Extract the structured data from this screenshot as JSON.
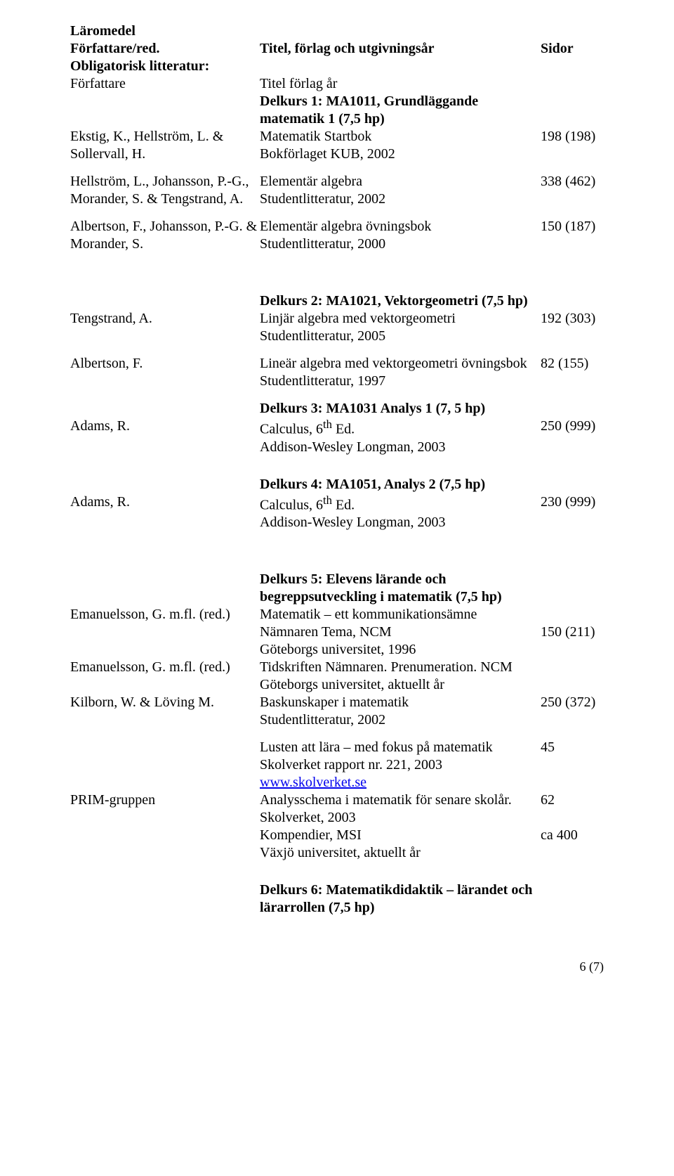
{
  "header": {
    "h1": "Läromedel",
    "h2_left": "Författare/red.",
    "h2_mid": "Titel, förlag och utgivningsår",
    "h2_right": "Sidor",
    "obligatory": "Obligatorisk litteratur:",
    "sub_left": "Författare",
    "sub_mid": "Titel förlag år"
  },
  "d1": {
    "title": "Delkurs 1: MA1011, Grundläggande matematik 1 (7,5 hp)",
    "a1_author": "Ekstig, K., Hellström, L. & Sollervall, H.",
    "a1_title": "Matematik Startbok",
    "a1_pub": "Bokförlaget KUB, 2002",
    "a1_pages": "198 (198)",
    "a2_author": "Hellström, L., Johansson, P.-G., Morander, S. & Tengstrand, A.",
    "a2_title": "Elementär algebra",
    "a2_pub": "Studentlitteratur, 2002",
    "a2_pages": "338 (462)",
    "a3_author": "Albertson, F., Johansson, P.-G. & Morander, S.",
    "a3_title": "Elementär algebra övningsbok",
    "a3_pub": "Studentlitteratur, 2000",
    "a3_pages": "150 (187)"
  },
  "d2": {
    "title": "Delkurs 2: MA1021, Vektorgeometri (7,5 hp)",
    "a1_author": "Tengstrand, A.",
    "a1_title": "Linjär algebra med vektorgeometri",
    "a1_pub": "Studentlitteratur, 2005",
    "a1_pages": "192 (303)",
    "a2_author": "Albertson, F.",
    "a2_title": "Lineär algebra med vektorgeometri övningsbok",
    "a2_pub": "Studentlitteratur, 1997",
    "a2_pages": "82 (155)"
  },
  "d3": {
    "title": "Delkurs 3: MA1031 Analys 1 (7, 5 hp)",
    "a1_author": "Adams, R.",
    "a1_title": "Calculus, 6th Ed.",
    "a1_title_pre": "Calculus, 6",
    "a1_title_sup": "th",
    "a1_title_post": " Ed.",
    "a1_pub": "Addison-Wesley Longman, 2003",
    "a1_pages": "250 (999)"
  },
  "d4": {
    "title": "Delkurs 4: MA1051, Analys 2 (7,5 hp)",
    "a1_author": "Adams, R.",
    "a1_title_pre": "Calculus, 6",
    "a1_title_sup": "th",
    "a1_title_post": " Ed.",
    "a1_pub": "Addison-Wesley Longman, 2003",
    "a1_pages": "230 (999)"
  },
  "d5": {
    "title": "Delkurs 5: Elevens lärande och begreppsutveckling i matematik (7,5 hp)",
    "a1_author": "Emanuelsson, G. m.fl. (red.)",
    "a1_l1": "Matematik – ett kommunikationsämne",
    "a1_l2": "Nämnaren Tema, NCM",
    "a1_l3": "Göteborgs universitet, 1996",
    "a1_pages": "150 (211)",
    "a2_author": "Emanuelsson, G. m.fl. (red.)",
    "a2_l1": "Tidskriften Nämnaren. Prenumeration. NCM",
    "a2_l2": "Göteborgs universitet, aktuellt år",
    "a3_author": "Kilborn, W. & Löving M.",
    "a3_l1": "Baskunskaper i matematik",
    "a3_l2": "Studentlitteratur, 2002",
    "a3_pages": "250 (372)",
    "a4_l1": "Lusten att lära – med fokus på matematik",
    "a4_l2": "Skolverket rapport nr. 221, 2003",
    "a4_link": "www.skolverket.se",
    "a4_pages": "45",
    "a5_author": "PRIM-gruppen",
    "a5_l1": "Analysschema i matematik för senare skolår.",
    "a5_l2": "Skolverket, 2003",
    "a5_pages": "62",
    "a6_l1": "Kompendier, MSI",
    "a6_l2": "Växjö universitet, aktuellt år",
    "a6_pages": "ca 400"
  },
  "d6": {
    "title": "Delkurs 6: Matematikdidaktik – lärandet och lärarrollen (7,5 hp)"
  },
  "footer": {
    "page": "6 (7)"
  }
}
